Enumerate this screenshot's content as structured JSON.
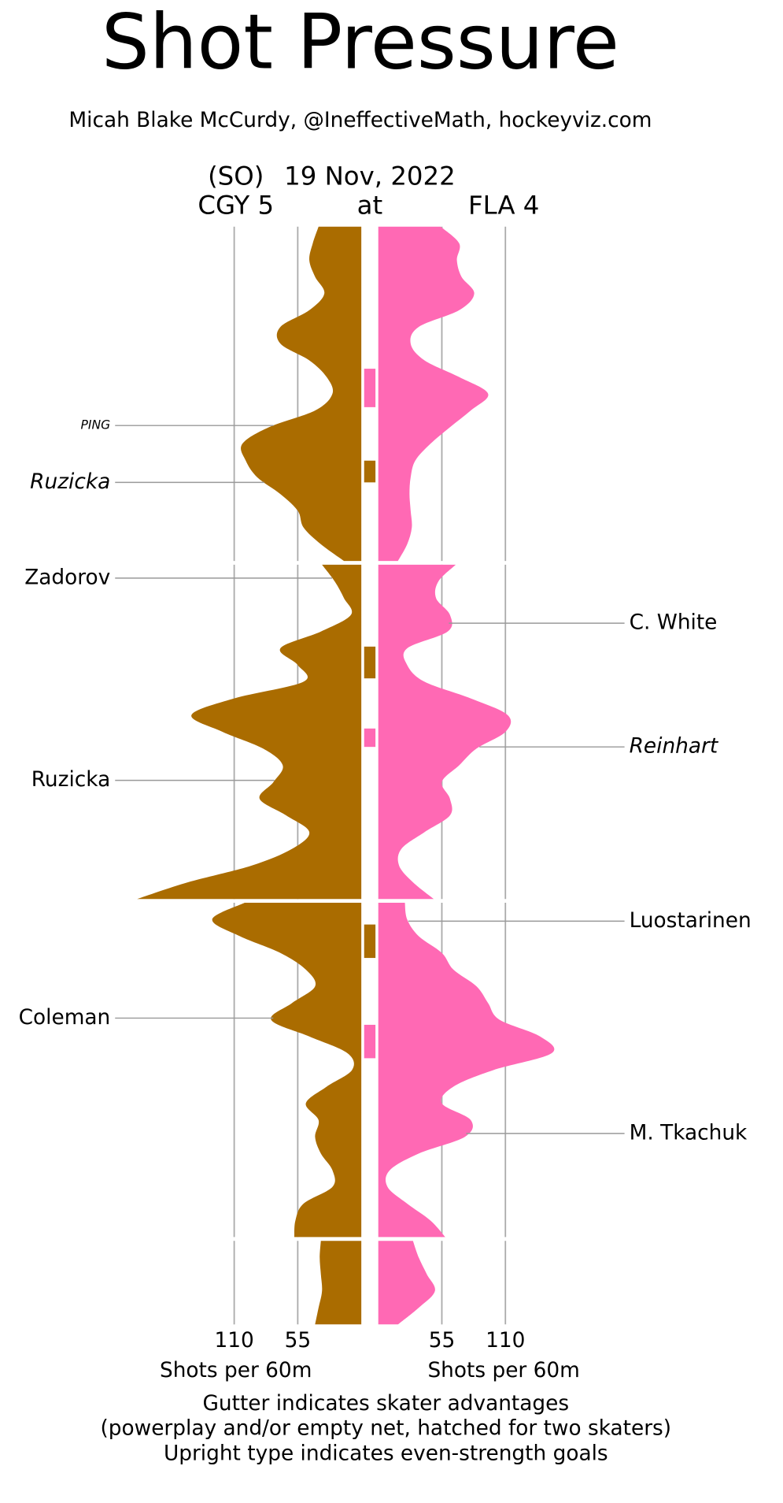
{
  "chart_data": {
    "type": "shot-pressure",
    "title": "Shot Pressure",
    "subtitle": "Micah Blake McCurdy, @IneffectiveMath, hockeyviz.com",
    "result_note": "(SO)",
    "date": "19 Nov, 2022",
    "at": "at",
    "xlim": [
      0,
      200
    ],
    "xticks": [
      55,
      110
    ],
    "xlabel": "Shots per 60m",
    "grid": true,
    "periods": [
      {
        "x": [
          0,
          1,
          2,
          3,
          4,
          5,
          6,
          7,
          8,
          9,
          10,
          11,
          12,
          13,
          14,
          15,
          16,
          17,
          18,
          19,
          20
        ]
      },
      {
        "x": [
          0,
          1,
          2,
          3,
          4,
          5,
          6,
          7,
          8,
          9,
          10,
          11,
          12,
          13,
          14,
          15,
          16,
          17,
          18,
          19,
          20
        ]
      },
      {
        "x": [
          0,
          1,
          2,
          3,
          4,
          5,
          6,
          7,
          8,
          9,
          10,
          11,
          12,
          13,
          14,
          15,
          16,
          17,
          18,
          19,
          20
        ]
      },
      {
        "x": [
          0,
          1,
          2,
          3,
          4,
          5
        ]
      }
    ],
    "series": [
      {
        "name": "CGY 5",
        "side": "left",
        "color": "#aa6c00",
        "values": [
          [
            37,
            42,
            45,
            40,
            32,
            45,
            70,
            70,
            45,
            30,
            25,
            40,
            80,
            103,
            100,
            90,
            70,
            55,
            50,
            35,
            15
          ],
          [
            34,
            23,
            15,
            9,
            35,
            70,
            55,
            50,
            110,
            147,
            120,
            85,
            68,
            76,
            88,
            65,
            45,
            60,
            95,
            150,
            194
          ],
          [
            101,
            129,
            105,
            70,
            48,
            40,
            60,
            78,
            45,
            12,
            8,
            30,
            48,
            37,
            40,
            35,
            25,
            25,
            50,
            57,
            58
          ],
          [
            35,
            36,
            35,
            34,
            37,
            40
          ]
        ]
      },
      {
        "name": "FLA 4",
        "side": "right",
        "color": "#ff69b4",
        "values": [
          [
            54,
            70,
            68,
            72,
            83,
            70,
            35,
            28,
            40,
            70,
            95,
            80,
            62,
            45,
            32,
            28,
            27,
            28,
            29,
            25,
            17
          ],
          [
            67,
            52,
            50,
            62,
            60,
            25,
            25,
            40,
            80,
            112,
            110,
            85,
            70,
            55,
            62,
            62,
            40,
            20,
            18,
            30,
            48
          ],
          [
            23,
            25,
            35,
            55,
            65,
            85,
            95,
            105,
            140,
            150,
            100,
            65,
            55,
            80,
            75,
            35,
            10,
            8,
            25,
            45,
            58
          ],
          [
            30,
            35,
            42,
            49,
            35,
            17
          ]
        ]
      }
    ],
    "advantages": [
      {
        "team": 1,
        "period": 0,
        "start": 8.5,
        "end": 10.8
      },
      {
        "team": 0,
        "period": 0,
        "start": 14.0,
        "end": 15.3
      },
      {
        "team": 0,
        "period": 1,
        "start": 4.9,
        "end": 6.8
      },
      {
        "team": 1,
        "period": 1,
        "start": 9.8,
        "end": 10.9
      },
      {
        "team": 0,
        "period": 2,
        "start": 1.3,
        "end": 3.3
      },
      {
        "team": 1,
        "period": 2,
        "start": 7.3,
        "end": 9.3
      }
    ],
    "annotations": [
      {
        "text": "PING",
        "team": 0,
        "period": 0,
        "time": 11.9,
        "italic": true,
        "small": true
      },
      {
        "text": "Ruzicka",
        "team": 0,
        "period": 0,
        "time": 15.3,
        "italic": true,
        "small": false
      },
      {
        "text": "Zadorov",
        "team": 0,
        "period": 1,
        "time": 0.8,
        "italic": false,
        "small": false
      },
      {
        "text": "Ruzicka",
        "team": 0,
        "period": 1,
        "time": 12.9,
        "italic": false,
        "small": false
      },
      {
        "text": "Coleman",
        "team": 0,
        "period": 2,
        "time": 6.9,
        "italic": false,
        "small": false
      },
      {
        "text": "C. White",
        "team": 1,
        "period": 1,
        "time": 3.5,
        "italic": false,
        "small": false
      },
      {
        "text": "Reinhart",
        "team": 1,
        "period": 1,
        "time": 10.9,
        "italic": true,
        "small": false
      },
      {
        "text": "Luostarinen",
        "team": 1,
        "period": 2,
        "time": 1.1,
        "italic": false,
        "small": false
      },
      {
        "text": "M. Tkachuk",
        "team": 1,
        "period": 2,
        "time": 13.8,
        "italic": false,
        "small": false
      }
    ],
    "notes": [
      "Gutter indicates skater advantages",
      "(powerplay and/or empty net, hatched for two skaters)",
      "Upright type indicates even-strength goals"
    ]
  }
}
